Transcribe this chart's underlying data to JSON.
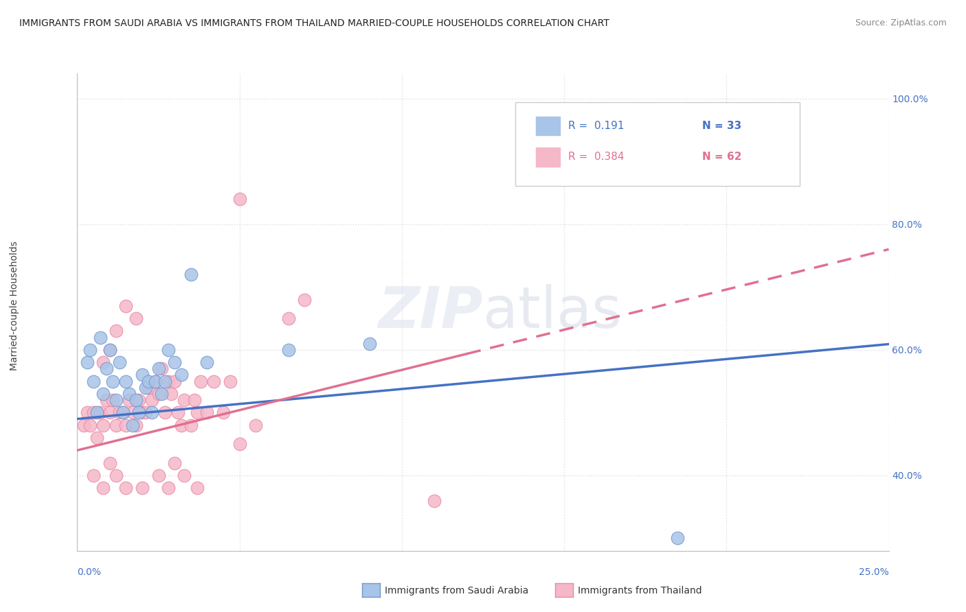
{
  "title": "IMMIGRANTS FROM SAUDI ARABIA VS IMMIGRANTS FROM THAILAND MARRIED-COUPLE HOUSEHOLDS CORRELATION CHART",
  "source": "Source: ZipAtlas.com",
  "legend_blue_r": "R =  0.191",
  "legend_blue_n": "N = 33",
  "legend_pink_r": "R =  0.384",
  "legend_pink_n": "N = 62",
  "legend_blue_label": "Immigrants from Saudi Arabia",
  "legend_pink_label": "Immigrants from Thailand",
  "blue_color": "#a8c4e8",
  "pink_color": "#f5b8c8",
  "blue_edge": "#7098cc",
  "pink_edge": "#e888a8",
  "blue_line_color": "#4472c4",
  "pink_line_color": "#e07090",
  "blue_scatter": [
    [
      0.003,
      0.58
    ],
    [
      0.004,
      0.6
    ],
    [
      0.005,
      0.55
    ],
    [
      0.006,
      0.5
    ],
    [
      0.007,
      0.62
    ],
    [
      0.008,
      0.53
    ],
    [
      0.009,
      0.57
    ],
    [
      0.01,
      0.6
    ],
    [
      0.011,
      0.55
    ],
    [
      0.012,
      0.52
    ],
    [
      0.013,
      0.58
    ],
    [
      0.014,
      0.5
    ],
    [
      0.015,
      0.55
    ],
    [
      0.016,
      0.53
    ],
    [
      0.017,
      0.48
    ],
    [
      0.018,
      0.52
    ],
    [
      0.019,
      0.5
    ],
    [
      0.02,
      0.56
    ],
    [
      0.021,
      0.54
    ],
    [
      0.022,
      0.55
    ],
    [
      0.023,
      0.5
    ],
    [
      0.024,
      0.55
    ],
    [
      0.025,
      0.57
    ],
    [
      0.026,
      0.53
    ],
    [
      0.027,
      0.55
    ],
    [
      0.028,
      0.6
    ],
    [
      0.03,
      0.58
    ],
    [
      0.032,
      0.56
    ],
    [
      0.035,
      0.72
    ],
    [
      0.04,
      0.58
    ],
    [
      0.065,
      0.6
    ],
    [
      0.09,
      0.61
    ],
    [
      0.185,
      0.3
    ]
  ],
  "pink_scatter": [
    [
      0.002,
      0.48
    ],
    [
      0.003,
      0.5
    ],
    [
      0.004,
      0.48
    ],
    [
      0.005,
      0.5
    ],
    [
      0.006,
      0.46
    ],
    [
      0.007,
      0.5
    ],
    [
      0.008,
      0.48
    ],
    [
      0.009,
      0.52
    ],
    [
      0.01,
      0.5
    ],
    [
      0.011,
      0.52
    ],
    [
      0.012,
      0.48
    ],
    [
      0.013,
      0.5
    ],
    [
      0.014,
      0.5
    ],
    [
      0.015,
      0.48
    ],
    [
      0.016,
      0.52
    ],
    [
      0.017,
      0.5
    ],
    [
      0.018,
      0.48
    ],
    [
      0.019,
      0.52
    ],
    [
      0.02,
      0.5
    ],
    [
      0.021,
      0.5
    ],
    [
      0.022,
      0.54
    ],
    [
      0.023,
      0.52
    ],
    [
      0.024,
      0.55
    ],
    [
      0.025,
      0.53
    ],
    [
      0.026,
      0.57
    ],
    [
      0.027,
      0.5
    ],
    [
      0.028,
      0.55
    ],
    [
      0.029,
      0.53
    ],
    [
      0.03,
      0.55
    ],
    [
      0.031,
      0.5
    ],
    [
      0.032,
      0.48
    ],
    [
      0.033,
      0.52
    ],
    [
      0.035,
      0.48
    ],
    [
      0.036,
      0.52
    ],
    [
      0.037,
      0.5
    ],
    [
      0.038,
      0.55
    ],
    [
      0.04,
      0.5
    ],
    [
      0.042,
      0.55
    ],
    [
      0.045,
      0.5
    ],
    [
      0.047,
      0.55
    ],
    [
      0.008,
      0.58
    ],
    [
      0.01,
      0.6
    ],
    [
      0.012,
      0.63
    ],
    [
      0.015,
      0.67
    ],
    [
      0.018,
      0.65
    ],
    [
      0.065,
      0.65
    ],
    [
      0.07,
      0.68
    ],
    [
      0.005,
      0.4
    ],
    [
      0.008,
      0.38
    ],
    [
      0.01,
      0.42
    ],
    [
      0.012,
      0.4
    ],
    [
      0.015,
      0.38
    ],
    [
      0.02,
      0.38
    ],
    [
      0.025,
      0.4
    ],
    [
      0.028,
      0.38
    ],
    [
      0.03,
      0.42
    ],
    [
      0.033,
      0.4
    ],
    [
      0.037,
      0.38
    ],
    [
      0.05,
      0.45
    ],
    [
      0.055,
      0.48
    ],
    [
      0.05,
      0.84
    ],
    [
      0.11,
      0.36
    ]
  ],
  "xlim": [
    0.0,
    0.25
  ],
  "ylim": [
    0.28,
    1.04
  ],
  "grid_yticks": [
    0.4,
    0.6,
    0.8,
    1.0
  ],
  "right_ytick_labels": [
    "40.0%",
    "60.0%",
    "80.0%",
    "100.0%"
  ],
  "blue_trend": [
    0.0,
    0.252,
    0.49,
    0.61
  ],
  "pink_trend_solid_end": 0.12,
  "pink_trend": [
    0.0,
    0.25,
    0.44,
    0.76
  ],
  "grid_color": "#dddddd",
  "grid_linestyle": "dotted",
  "background_color": "#ffffff",
  "watermark_text": "ZIPAtlas",
  "ylabel": "Married-couple Households"
}
